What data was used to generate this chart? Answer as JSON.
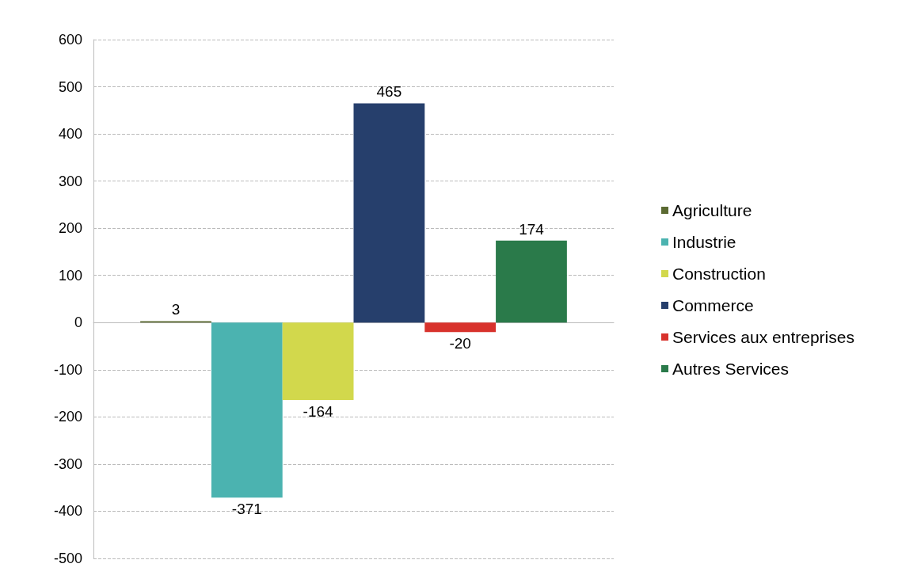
{
  "chart_data": {
    "type": "bar",
    "categories": [
      null
    ],
    "series": [
      {
        "name": "Agriculture",
        "color": "#5b6a32",
        "values": [
          3
        ]
      },
      {
        "name": "Industrie",
        "color": "#4bb3b0",
        "values": [
          -371
        ]
      },
      {
        "name": "Construction",
        "color": "#d2d84c",
        "values": [
          -164
        ]
      },
      {
        "name": "Commerce",
        "color": "#263f6c",
        "values": [
          465
        ]
      },
      {
        "name": "Services aux entreprises",
        "color": "#d8322c",
        "values": [
          -20
        ]
      },
      {
        "name": "Autres Services",
        "color": "#2a7a4a",
        "values": [
          174
        ]
      }
    ],
    "ylim": [
      -500,
      600
    ],
    "yticks": [
      -500,
      -400,
      -300,
      -200,
      -100,
      0,
      100,
      200,
      300,
      400,
      500,
      600
    ],
    "grid": "y",
    "legend": "right",
    "data_labels": true
  }
}
